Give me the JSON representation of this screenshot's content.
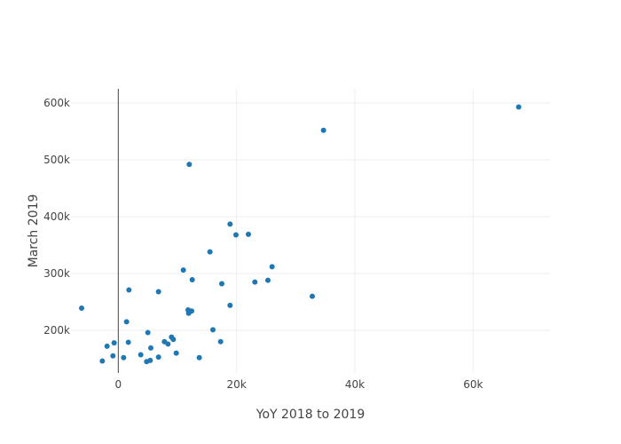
{
  "chart_data": {
    "type": "scatter",
    "title": "",
    "xlabel": "YoY 2018 to 2019",
    "ylabel": "March 2019",
    "xlim": [
      -8000,
      73000
    ],
    "ylim": [
      125000,
      625000
    ],
    "x_ticks": [
      {
        "value": 0,
        "label": "0"
      },
      {
        "value": 20000,
        "label": "20k"
      },
      {
        "value": 40000,
        "label": "40k"
      },
      {
        "value": 60000,
        "label": "60k"
      }
    ],
    "y_ticks": [
      {
        "value": 200000,
        "label": "200k"
      },
      {
        "value": 300000,
        "label": "300k"
      },
      {
        "value": 400000,
        "label": "400k"
      },
      {
        "value": 500000,
        "label": "500k"
      },
      {
        "value": 600000,
        "label": "600k"
      }
    ],
    "grid": true,
    "zero_line_x": true,
    "marker_color": "#1f77b4",
    "gridline_color": "#eeeeee",
    "zero_line_color": "#444444",
    "series": [
      {
        "x": [
          67700,
          34700,
          12000,
          18900,
          22000,
          19900,
          15500,
          26000,
          11000,
          12500,
          17500,
          23100,
          25300,
          32800,
          1800,
          6800,
          18900,
          11800,
          12400,
          11900,
          16000,
          -6200,
          1400,
          5000,
          9000,
          9300,
          7800,
          1700,
          8400,
          -1900,
          -900,
          5500,
          9800,
          17300,
          -700,
          900,
          3800,
          6800,
          13700,
          5400,
          4800,
          -2700
        ],
        "y": [
          593000,
          552000,
          492000,
          387000,
          369000,
          368000,
          338000,
          312000,
          306000,
          289000,
          282000,
          285000,
          288000,
          260000,
          271000,
          268000,
          244000,
          236000,
          234000,
          230000,
          201000,
          239000,
          215000,
          196000,
          188000,
          184000,
          180000,
          179000,
          176000,
          172000,
          155000,
          169000,
          160000,
          180000,
          178000,
          152000,
          157000,
          153000,
          152000,
          147000,
          145000,
          146000
        ]
      }
    ]
  }
}
